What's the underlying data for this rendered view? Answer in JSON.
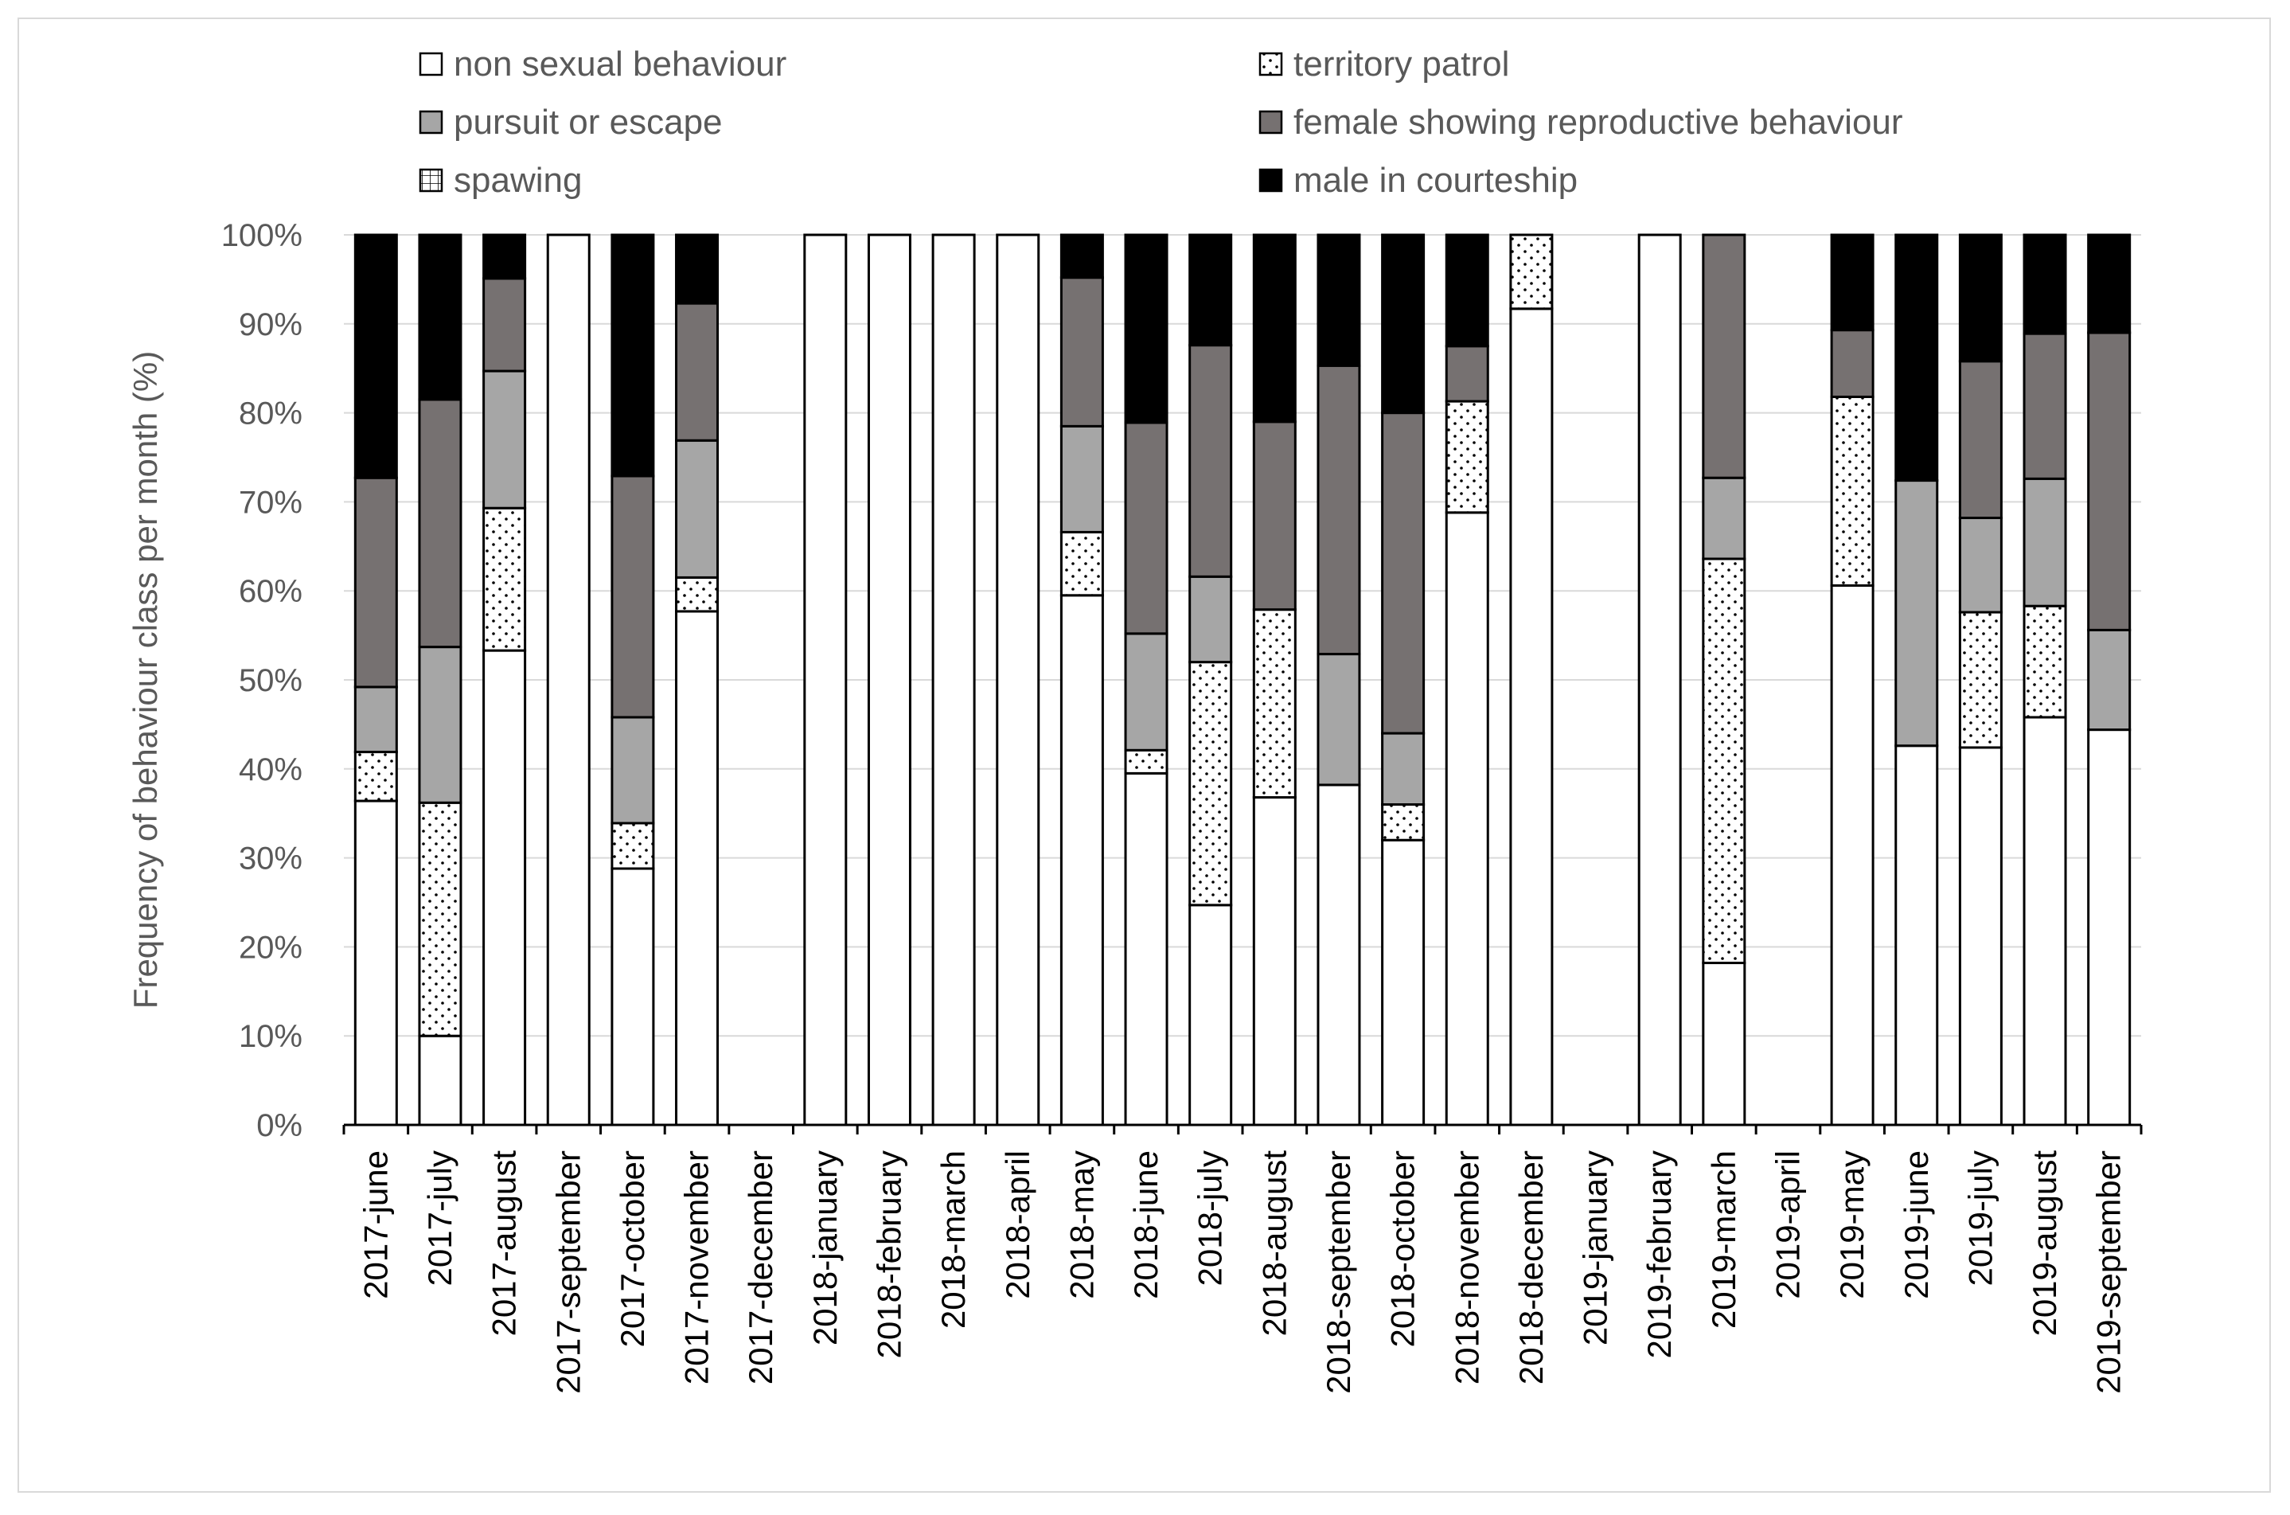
{
  "chart_data": {
    "type": "bar",
    "stacked": true,
    "normalized_percent": true,
    "title": "",
    "ylabel": "Frequency of behaviour class per month (%)",
    "xlabel": "",
    "ylim": [
      0,
      100
    ],
    "yticks": [
      "0%",
      "10%",
      "20%",
      "30%",
      "40%",
      "50%",
      "60%",
      "70%",
      "80%",
      "90%",
      "100%"
    ],
    "grid": "horizontal",
    "legend_position": "top",
    "categories": [
      "2017-june",
      "2017-july",
      "2017-august",
      "2017-september",
      "2017-october",
      "2017-november",
      "2017-december",
      "2018-january",
      "2018-february",
      "2018-march",
      "2018-april",
      "2018-may",
      "2018-june",
      "2018-july",
      "2018-august",
      "2018-september",
      "2018-october",
      "2018-november",
      "2018-december",
      "2019-january",
      "2019-february",
      "2019-march",
      "2019-april",
      "2019-may",
      "2019-june",
      "2019-july",
      "2019-august",
      "2019-september"
    ],
    "series": [
      {
        "name": "non sexual behaviour",
        "fill": "white",
        "color": "#ffffff",
        "values": [
          36.4,
          10,
          53.3,
          100,
          28.8,
          57.7,
          0,
          100,
          100,
          100,
          100,
          59.5,
          39.5,
          24.7,
          36.8,
          38.2,
          32,
          68.8,
          91.7,
          0,
          100,
          18.2,
          0,
          60.6,
          42.6,
          42.4,
          45.8,
          44.4
        ]
      },
      {
        "name": "territory patrol",
        "fill": "dots",
        "color": "#ffffff",
        "values": [
          5.5,
          26.2,
          16,
          0,
          5.1,
          3.8,
          0,
          0,
          0,
          0,
          0,
          7.1,
          2.6,
          27.3,
          21.1,
          0,
          4,
          12.5,
          8.3,
          0,
          0,
          45.4,
          0,
          21.2,
          0,
          15.2,
          12.5,
          0
        ]
      },
      {
        "name": "pursuit or escape",
        "fill": "lightgray",
        "color": "#a6a6a6",
        "values": [
          7.3,
          17.5,
          15.4,
          0,
          11.9,
          15.4,
          0,
          0,
          0,
          0,
          0,
          11.9,
          13.1,
          9.6,
          0,
          14.7,
          8,
          0,
          0,
          0,
          0,
          9.1,
          0,
          0,
          29.8,
          10.6,
          14.3,
          11.2
        ]
      },
      {
        "name": "female showing reproductive behaviour",
        "fill": "darkgray",
        "color": "#767171",
        "values": [
          23.5,
          27.8,
          10.4,
          0,
          27.1,
          15.4,
          0,
          0,
          0,
          0,
          0,
          16.7,
          23.7,
          26,
          21.1,
          32.4,
          36,
          6.2,
          0,
          0,
          0,
          27.3,
          0,
          7.5,
          0,
          17.6,
          16.3,
          33.4
        ]
      },
      {
        "name": "spawing",
        "fill": "grid",
        "color": "#ffffff",
        "values": [
          0,
          0,
          0,
          0,
          0,
          0,
          0,
          0,
          0,
          0,
          0,
          0,
          0,
          0,
          0,
          0,
          0,
          0,
          0,
          0,
          0,
          0,
          0,
          0,
          0,
          0,
          0,
          0
        ]
      },
      {
        "name": "male in courteship",
        "fill": "black",
        "color": "#000000",
        "values": [
          27.3,
          18.5,
          4.9,
          0,
          27.1,
          7.7,
          0,
          0,
          0,
          0,
          0,
          4.8,
          21.1,
          12.4,
          21,
          14.7,
          20,
          12.5,
          0,
          0,
          0,
          0,
          0,
          10.7,
          27.6,
          14.2,
          11.1,
          11
        ]
      }
    ],
    "legend": {
      "col1": [
        "non sexual behaviour",
        "pursuit or escape",
        "spawing"
      ],
      "col2": [
        "territory patrol",
        "female showing reproductive behaviour",
        "male in courteship"
      ]
    }
  }
}
